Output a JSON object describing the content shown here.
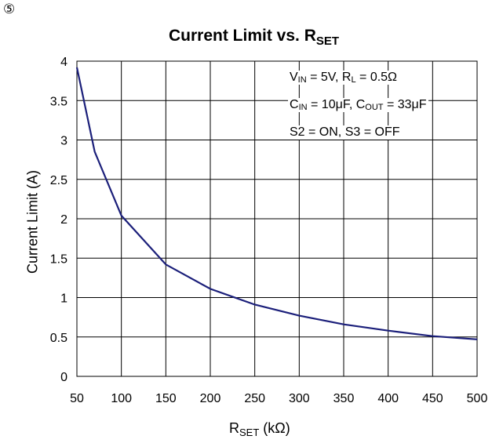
{
  "marker": "⑤",
  "chart_data": {
    "type": "line",
    "title": "Current Limit vs. R",
    "title_subscript": "SET",
    "xlabel": "R",
    "xlabel_subscript": "SET",
    "xlabel_unit": " (kΩ)",
    "ylabel": "Current Limit (A)",
    "xlim": [
      50,
      500
    ],
    "ylim": [
      0,
      4
    ],
    "x_ticks": [
      "50",
      "100",
      "150",
      "200",
      "250",
      "300",
      "350",
      "400",
      "450",
      "500"
    ],
    "y_ticks": [
      "0",
      "0.5",
      "1",
      "1.5",
      "2",
      "2.5",
      "3",
      "3.5",
      "4"
    ],
    "grid": true,
    "line_color": "#1b1f7a",
    "series": [
      {
        "x": [
          50,
          70,
          100,
          150,
          200,
          250,
          300,
          350,
          400,
          450,
          500
        ],
        "y": [
          3.92,
          2.85,
          2.04,
          1.42,
          1.11,
          0.91,
          0.77,
          0.66,
          0.58,
          0.51,
          0.47
        ]
      }
    ],
    "annotations": [
      {
        "p1": "V",
        "s1": "IN",
        "p2": " = 5V,  R",
        "s2": "L",
        "p3": " = 0.5Ω"
      },
      {
        "p1": "C",
        "s1": "IN",
        "p2": " = 10μF, C",
        "s2": "OUT",
        "p3": " = 33μF"
      },
      {
        "p1": "S2 = ON, S3 = OFF",
        "s1": "",
        "p2": "",
        "s2": "",
        "p3": ""
      }
    ]
  }
}
